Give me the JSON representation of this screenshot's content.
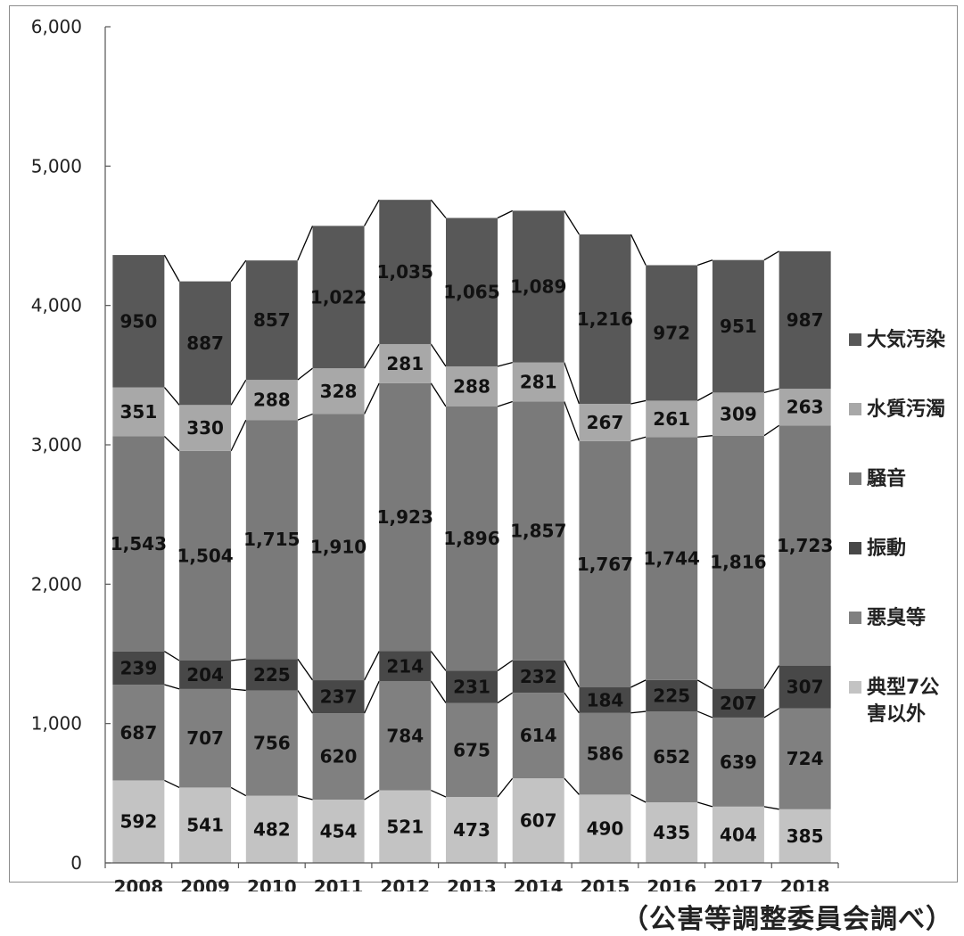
{
  "chart_data": {
    "type": "bar",
    "stacked": true,
    "categories": [
      "2008",
      "2009",
      "2010",
      "2011",
      "2012",
      "2013",
      "2014",
      "2015",
      "2016",
      "2017",
      "2018"
    ],
    "series": [
      {
        "name": "典型7公害以外",
        "color": "#c3c3c3",
        "values": [
          592,
          541,
          482,
          454,
          521,
          473,
          607,
          490,
          435,
          404,
          385
        ]
      },
      {
        "name": "悪臭等",
        "color": "#808080",
        "values": [
          687,
          707,
          756,
          620,
          784,
          675,
          614,
          586,
          652,
          639,
          724
        ]
      },
      {
        "name": "振動",
        "color": "#484848",
        "values": [
          239,
          204,
          225,
          237,
          214,
          231,
          232,
          184,
          225,
          207,
          307
        ]
      },
      {
        "name": "騒音",
        "color": "#7a7a7a",
        "values": [
          1543,
          1504,
          1715,
          1910,
          1923,
          1896,
          1857,
          1767,
          1744,
          1816,
          1723
        ]
      },
      {
        "name": "水質汚濁",
        "color": "#a8a8a8",
        "values": [
          351,
          330,
          288,
          328,
          281,
          288,
          281,
          267,
          261,
          309,
          263
        ]
      },
      {
        "name": "大気汚染",
        "color": "#585858",
        "values": [
          950,
          887,
          857,
          1022,
          1035,
          1065,
          1089,
          1216,
          972,
          951,
          987
        ]
      }
    ],
    "data_labels": [
      [
        "592",
        "541",
        "482",
        "454",
        "521",
        "473",
        "607",
        "490",
        "435",
        "404",
        "385"
      ],
      [
        "687",
        "707",
        "756",
        "620",
        "784",
        "675",
        "614",
        "586",
        "652",
        "639",
        "724"
      ],
      [
        "239",
        "204",
        "225",
        "237",
        "214",
        "231",
        "232",
        "184",
        "225",
        "207",
        "307"
      ],
      [
        "1,543",
        "1,504",
        "1,715",
        "1,910",
        "1,923",
        "1,896",
        "1,857",
        "1,767",
        "1,744",
        "1,816",
        "1,723"
      ],
      [
        "351",
        "330",
        "288",
        "328",
        "281",
        "288",
        "281",
        "267",
        "261",
        "309",
        "263"
      ],
      [
        "950",
        "887",
        "857",
        "1,022",
        "1,035",
        "1,065",
        "1,089",
        "1,216",
        "972",
        "951",
        "987"
      ]
    ],
    "y_ticks": [
      {
        "value": 0,
        "label": "0"
      },
      {
        "value": 1000,
        "label": "1,000"
      },
      {
        "value": 2000,
        "label": "2,000"
      },
      {
        "value": 3000,
        "label": "3,000"
      },
      {
        "value": 4000,
        "label": "4,000"
      },
      {
        "value": 5000,
        "label": "5,000"
      },
      {
        "value": 6000,
        "label": "6,000"
      }
    ],
    "ylim": [
      0,
      6000
    ],
    "legend_order": [
      "大気汚染",
      "水質汚濁",
      "騒音",
      "振動",
      "悪臭等",
      "典型7公害以外"
    ],
    "legend_position": "right",
    "series_lines": true,
    "grid": false,
    "title": "",
    "xlabel": "",
    "ylabel": ""
  },
  "source_note": "（公害等調整委員会調べ）"
}
